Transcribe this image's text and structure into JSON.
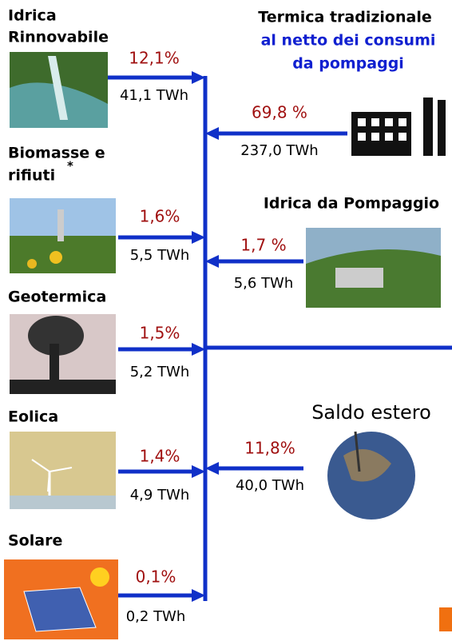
{
  "left_sources": [
    {
      "title_lines": [
        "Idrica",
        "Rinnovabile"
      ],
      "percent": "12,1%",
      "energy": "41,1 TWh"
    },
    {
      "title_lines": [
        "Biomasse e",
        "rifiuti"
      ],
      "note": "*",
      "percent": "1,6%",
      "energy": "5,5 TWh"
    },
    {
      "title_lines": [
        "Geotermica"
      ],
      "percent": "1,5%",
      "energy": "5,2 TWh"
    },
    {
      "title_lines": [
        "Eolica"
      ],
      "percent": "1,4%",
      "energy": "4,9 TWh"
    },
    {
      "title_lines": [
        "Solare"
      ],
      "percent": "0,1%",
      "energy": "0,2 TWh"
    }
  ],
  "right_sources": [
    {
      "title": "Termica tradizionale",
      "subtitle_lines": [
        "al netto dei consumi",
        "da pompaggi"
      ],
      "percent": "69,8 %",
      "energy": "237,0 TWh"
    },
    {
      "title": "Idrica da Pompaggio",
      "percent": "1,7 %",
      "energy": "5,6 TWh"
    },
    {
      "title": "Saldo estero",
      "percent": "11,8%",
      "energy": "40,0 TWh"
    }
  ]
}
